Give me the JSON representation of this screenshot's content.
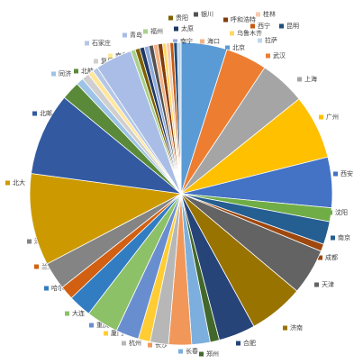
{
  "chart_data": {
    "type": "pie",
    "categories": [
      "北京",
      "武汉",
      "上海",
      "广州",
      "西安",
      "沈阳",
      "南京",
      "成都",
      "天津",
      "济南",
      "合肥",
      "郑州",
      "长春",
      "长沙",
      "杭州",
      "厦门",
      "重庆",
      "大连",
      "哈尔滨",
      "兰州",
      "深圳",
      "北大",
      "北邮",
      "北航",
      "同济",
      "复旦",
      "南昌",
      "石家庄",
      "青岛",
      "福州",
      "贵阳",
      "太原",
      "南宁",
      "银川",
      "海口",
      "呼和浩特",
      "乌鲁木齐",
      "桂林",
      "西宁",
      "昆明",
      "拉萨"
    ],
    "values": [
      5,
      4.5,
      5,
      7,
      5.5,
      1.5,
      2.5,
      0.8,
      5,
      6,
      4,
      1,
      2,
      2.5,
      2,
      1.3,
      2.5,
      3.5,
      2.5,
      1.5,
      3,
      10,
      9,
      2,
      0.8,
      0.8,
      0.6,
      0.6,
      4,
      0.5,
      0.5,
      0.5,
      0.5,
      0.5,
      0.5,
      0.5,
      0.4,
      0.4,
      0.4,
      0.4,
      0.4
    ],
    "colors": [
      "#5b9bd5",
      "#ed7d31",
      "#a5a5a5",
      "#ffc000",
      "#4472c4",
      "#70ad47",
      "#255e91",
      "#9e480e",
      "#636363",
      "#997300",
      "#264478",
      "#43682b",
      "#7cafdd",
      "#f1975a",
      "#b7b7b7",
      "#ffcd33",
      "#698ed0",
      "#8cc168",
      "#327dc2",
      "#d26012",
      "#848484",
      "#cc9a00",
      "#335aa1",
      "#5a8a39",
      "#9dc3e6",
      "#d0cece",
      "#ffe699",
      "#b4c7e7",
      "#a9bde6",
      "#a9d08e",
      "#7f6000",
      "#203864",
      "#8faadc",
      "#525252",
      "#f4b183",
      "#843c0c",
      "#ffd966",
      "#f8cbad",
      "#c55a11",
      "#1f4e79",
      "#bdd7ee"
    ]
  }
}
